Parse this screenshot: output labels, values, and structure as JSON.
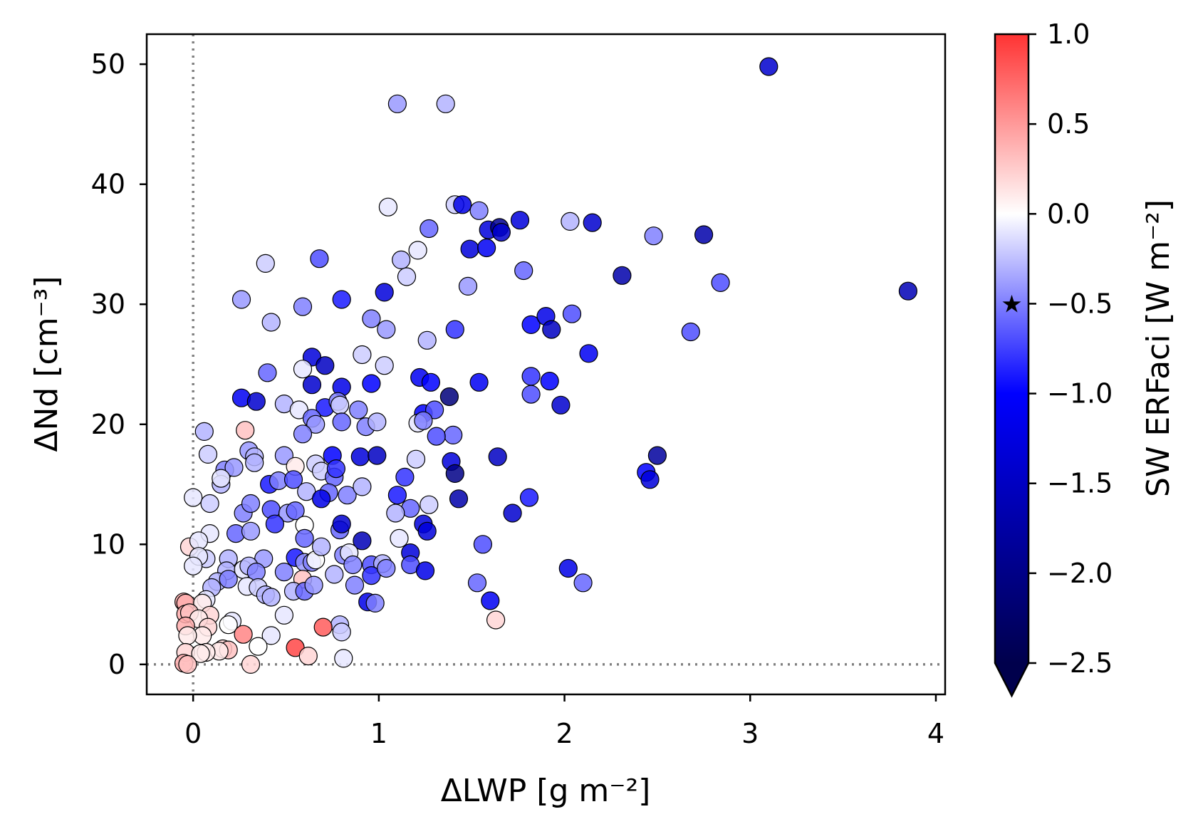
{
  "chart_data": {
    "type": "scatter",
    "xlabel": "ΔLWP [g m⁻²]",
    "ylabel": "ΔNd [cm⁻³]",
    "colorbar_label": "SW ERFaci [W m⁻²]",
    "xlim": [
      -0.25,
      4.05
    ],
    "ylim": [
      -2.5,
      52.5
    ],
    "x_ticks": [
      0,
      1,
      2,
      3,
      4
    ],
    "y_ticks": [
      0,
      10,
      20,
      30,
      40,
      50
    ],
    "colorbar_ticks": [
      1.0,
      0.5,
      0.0,
      -0.5,
      -1.0,
      -1.5,
      -2.0,
      -2.5
    ],
    "colorbar_tick_labels": [
      "1.0",
      "0.5",
      "0.0",
      "−0.5",
      "−1.0",
      "−1.5",
      "−2.0",
      "−2.5"
    ],
    "colorbar_range": [
      -2.5,
      1.0
    ],
    "colorbar_extend": "min",
    "colormap": "seismic",
    "colorbar_marker": {
      "symbol": "★",
      "value": -0.5
    },
    "reference_lines": {
      "x": 0,
      "y": 0,
      "style": "dotted",
      "color": "#808080"
    },
    "grid": false,
    "points": [
      [
        3.1,
        49.8,
        -1.4
      ],
      [
        1.1,
        46.7,
        -0.4
      ],
      [
        1.36,
        46.7,
        -0.3
      ],
      [
        1.05,
        38.1,
        -0.1
      ],
      [
        1.41,
        38.3,
        -0.2
      ],
      [
        1.45,
        38.3,
        -1.2
      ],
      [
        1.54,
        37.8,
        -0.5
      ],
      [
        1.59,
        36.2,
        -1.3
      ],
      [
        1.65,
        36.4,
        -1.9
      ],
      [
        1.66,
        36.0,
        -1.4
      ],
      [
        1.76,
        37.0,
        -1.3
      ],
      [
        2.03,
        36.9,
        -0.3
      ],
      [
        2.15,
        36.8,
        -1.4
      ],
      [
        1.27,
        36.3,
        -0.6
      ],
      [
        1.49,
        34.6,
        -1.3
      ],
      [
        1.58,
        34.7,
        -1.1
      ],
      [
        2.48,
        35.7,
        -0.5
      ],
      [
        2.75,
        35.8,
        -1.7
      ],
      [
        1.12,
        33.7,
        -0.3
      ],
      [
        1.21,
        34.5,
        -0.1
      ],
      [
        0.39,
        33.4,
        -0.2
      ],
      [
        0.68,
        33.8,
        -0.7
      ],
      [
        1.78,
        32.8,
        -0.6
      ],
      [
        1.15,
        32.3,
        -0.2
      ],
      [
        2.31,
        32.4,
        -1.7
      ],
      [
        2.84,
        31.8,
        -0.7
      ],
      [
        1.48,
        31.5,
        -0.4
      ],
      [
        1.03,
        31.0,
        -1.3
      ],
      [
        3.85,
        31.1,
        -1.6
      ],
      [
        0.26,
        30.4,
        -0.4
      ],
      [
        0.8,
        30.4,
        -0.9
      ],
      [
        0.59,
        29.8,
        -0.5
      ],
      [
        0.96,
        28.8,
        -0.5
      ],
      [
        0.42,
        28.5,
        -0.3
      ],
      [
        1.82,
        28.3,
        -1.0
      ],
      [
        1.9,
        29.0,
        -1.2
      ],
      [
        2.04,
        29.2,
        -0.7
      ],
      [
        1.93,
        27.9,
        -1.5
      ],
      [
        2.68,
        27.7,
        -0.7
      ],
      [
        1.04,
        27.9,
        -0.4
      ],
      [
        1.26,
        27.0,
        -0.3
      ],
      [
        1.41,
        27.9,
        -0.8
      ],
      [
        0.64,
        25.6,
        -1.3
      ],
      [
        0.71,
        24.9,
        -1.5
      ],
      [
        0.91,
        25.8,
        -0.2
      ],
      [
        1.03,
        24.9,
        -0.2
      ],
      [
        0.59,
        24.6,
        -0.1
      ],
      [
        0.4,
        24.3,
        -0.6
      ],
      [
        1.82,
        24.0,
        -0.8
      ],
      [
        2.13,
        25.9,
        -1.1
      ],
      [
        0.64,
        23.3,
        -1.4
      ],
      [
        0.8,
        23.1,
        -1.2
      ],
      [
        0.96,
        23.4,
        -1.0
      ],
      [
        1.22,
        23.9,
        -1.1
      ],
      [
        1.28,
        23.5,
        -1.0
      ],
      [
        1.54,
        23.5,
        -1.1
      ],
      [
        1.92,
        23.6,
        -1.0
      ],
      [
        0.26,
        22.2,
        -1.1
      ],
      [
        0.34,
        21.9,
        -1.4
      ],
      [
        0.49,
        21.7,
        -0.3
      ],
      [
        0.57,
        21.2,
        -0.1
      ],
      [
        0.71,
        21.4,
        -0.9
      ],
      [
        0.78,
        21.9,
        -0.5
      ],
      [
        0.79,
        21.6,
        -0.2
      ],
      [
        0.89,
        21.2,
        -0.5
      ],
      [
        1.24,
        20.9,
        -1.0
      ],
      [
        1.3,
        21.2,
        -0.7
      ],
      [
        1.38,
        22.3,
        -2.1
      ],
      [
        1.82,
        22.5,
        -0.7
      ],
      [
        1.98,
        21.6,
        -1.4
      ],
      [
        0.64,
        20.5,
        -0.6
      ],
      [
        0.66,
        20.0,
        -0.4
      ],
      [
        0.8,
        20.2,
        -0.6
      ],
      [
        0.93,
        19.8,
        -0.5
      ],
      [
        0.99,
        20.2,
        -0.3
      ],
      [
        1.21,
        20.1,
        -0.1
      ],
      [
        1.24,
        20.3,
        -0.5
      ],
      [
        1.4,
        19.1,
        -0.6
      ],
      [
        0.06,
        19.4,
        -0.3
      ],
      [
        0.28,
        19.5,
        0.3
      ],
      [
        0.59,
        19.2,
        -0.5
      ],
      [
        1.31,
        19.0,
        -0.7
      ],
      [
        0.08,
        17.5,
        -0.2
      ],
      [
        0.3,
        17.8,
        -0.4
      ],
      [
        0.33,
        17.3,
        -0.3
      ],
      [
        0.49,
        17.4,
        -0.4
      ],
      [
        0.75,
        17.4,
        -1.0
      ],
      [
        0.9,
        17.3,
        -1.3
      ],
      [
        0.99,
        17.4,
        -1.5
      ],
      [
        1.2,
        17.1,
        -0.2
      ],
      [
        1.39,
        16.9,
        -1.3
      ],
      [
        1.64,
        17.3,
        -1.5
      ],
      [
        2.5,
        17.4,
        -1.8
      ],
      [
        0.17,
        16.2,
        -0.5
      ],
      [
        0.22,
        16.4,
        -0.4
      ],
      [
        0.33,
        16.8,
        -0.3
      ],
      [
        0.41,
        15.0,
        -0.9
      ],
      [
        0.55,
        16.5,
        0.1
      ],
      [
        0.66,
        16.7,
        -0.2
      ],
      [
        0.69,
        16.1,
        -0.2
      ],
      [
        0.76,
        15.6,
        -0.6
      ],
      [
        0.77,
        16.3,
        -0.8
      ],
      [
        1.41,
        15.9,
        -2.0
      ],
      [
        2.44,
        16.0,
        -1.0
      ],
      [
        0.15,
        15.0,
        -0.3
      ],
      [
        0.15,
        15.5,
        -0.1
      ],
      [
        0.46,
        15.3,
        -0.5
      ],
      [
        0.54,
        15.4,
        -0.7
      ],
      [
        0.61,
        14.4,
        -0.3
      ],
      [
        0.73,
        14.3,
        -0.6
      ],
      [
        0.83,
        14.1,
        -0.5
      ],
      [
        0.91,
        14.8,
        -0.3
      ],
      [
        1.1,
        14.1,
        -0.9
      ],
      [
        1.14,
        15.6,
        -0.8
      ],
      [
        1.17,
        13.0,
        -0.6
      ],
      [
        1.27,
        13.3,
        -0.2
      ],
      [
        1.43,
        13.8,
        -1.7
      ],
      [
        1.81,
        13.9,
        -0.9
      ],
      [
        2.46,
        15.4,
        -1.3
      ],
      [
        0,
        13.9,
        -0.1
      ],
      [
        0.09,
        13.4,
        -0.2
      ],
      [
        0.27,
        12.6,
        -0.5
      ],
      [
        0.31,
        13.4,
        -0.5
      ],
      [
        0.42,
        12.9,
        -0.7
      ],
      [
        0.51,
        12.6,
        -0.4
      ],
      [
        0.55,
        12.8,
        -0.6
      ],
      [
        0.69,
        13.8,
        -1.2
      ],
      [
        1.09,
        12.6,
        -0.3
      ],
      [
        1.24,
        11.7,
        -1.3
      ],
      [
        1.26,
        11.1,
        -1.3
      ],
      [
        1.72,
        12.6,
        -1.4
      ],
      [
        0.09,
        10.9,
        -0.1
      ],
      [
        0.23,
        10.9,
        -0.6
      ],
      [
        0.31,
        11.1,
        -0.4
      ],
      [
        0.44,
        11.7,
        -0.8
      ],
      [
        0.6,
        11.6,
        0.0
      ],
      [
        0.6,
        10.5,
        -0.6
      ],
      [
        0.79,
        11.2,
        -0.6
      ],
      [
        0.8,
        11.7,
        -1.4
      ],
      [
        1.11,
        10.5,
        -0.1
      ],
      [
        0.91,
        10.3,
        -1.6
      ],
      [
        1.56,
        10.0,
        -0.7
      ],
      [
        -0.02,
        9.8,
        0.2
      ],
      [
        0.03,
        10.3,
        -0.1
      ],
      [
        0.07,
        8.8,
        -0.2
      ],
      [
        0.03,
        9.0,
        -0.1
      ],
      [
        0.19,
        8.8,
        -0.3
      ],
      [
        0.38,
        8.8,
        -0.4
      ],
      [
        0.55,
        8.9,
        -0.9
      ],
      [
        0.6,
        8.5,
        -0.4
      ],
      [
        0.64,
        8.5,
        -0.5
      ],
      [
        0.66,
        8.7,
        0.0
      ],
      [
        0.69,
        9.8,
        -0.3
      ],
      [
        0.81,
        9.1,
        -0.5
      ],
      [
        0.84,
        9.3,
        -0.1
      ],
      [
        0.86,
        8.3,
        -0.5
      ],
      [
        0.96,
        8.3,
        -0.7
      ],
      [
        1.02,
        8.4,
        -0.3
      ],
      [
        1.17,
        9.3,
        -1.3
      ],
      [
        1.17,
        8.3,
        -0.7
      ],
      [
        1.25,
        7.8,
        -1.2
      ],
      [
        0,
        8.2,
        -0.1
      ],
      [
        0.18,
        7.8,
        -0.3
      ],
      [
        0.27,
        7.9,
        -0.1
      ],
      [
        0.3,
        8.2,
        -0.3
      ],
      [
        0.34,
        7.7,
        -0.5
      ],
      [
        0.49,
        7.7,
        -0.5
      ],
      [
        0.59,
        7.1,
        0.3
      ],
      [
        0.76,
        7.5,
        -0.3
      ],
      [
        0.96,
        7.4,
        -0.8
      ],
      [
        1.04,
        8.0,
        -0.5
      ],
      [
        2.02,
        8.0,
        -1.2
      ],
      [
        0.13,
        6.9,
        -0.3
      ],
      [
        0.19,
        7.1,
        -0.5
      ],
      [
        0.29,
        6.5,
        -0.1
      ],
      [
        0.35,
        6.4,
        -0.2
      ],
      [
        0.54,
        6.1,
        -0.3
      ],
      [
        0.6,
        6.1,
        -0.6
      ],
      [
        0.65,
        6.6,
        -0.4
      ],
      [
        0.87,
        6.6,
        -0.5
      ],
      [
        1.53,
        6.8,
        -0.6
      ],
      [
        2.1,
        6.8,
        -0.6
      ],
      [
        0.1,
        6.4,
        -0.3
      ],
      [
        0.07,
        5.4,
        -0.1
      ],
      [
        0.39,
        5.8,
        -0.3
      ],
      [
        0.42,
        5.6,
        -0.3
      ],
      [
        0.94,
        5.2,
        -1.2
      ],
      [
        0.98,
        5.1,
        -0.5
      ],
      [
        1.6,
        5.3,
        -1.1
      ],
      [
        -0.05,
        5.2,
        0.4
      ],
      [
        -0.04,
        5.1,
        0.4
      ],
      [
        0.05,
        5.1,
        0.1
      ],
      [
        0.49,
        4.1,
        -0.1
      ],
      [
        0.09,
        4.1,
        0.2
      ],
      [
        -0.04,
        4.2,
        0.4
      ],
      [
        -0.02,
        4.3,
        0.3
      ],
      [
        0.03,
        3.8,
        0.1
      ],
      [
        -0.04,
        3.2,
        0.4
      ],
      [
        0.08,
        3.1,
        0.2
      ],
      [
        0.21,
        3.6,
        -0.1
      ],
      [
        0.19,
        3.3,
        0.0
      ],
      [
        0.79,
        3.3,
        -0.3
      ],
      [
        0.8,
        2.7,
        -0.2
      ],
      [
        1.63,
        3.7,
        0.2
      ],
      [
        0.7,
        3.1,
        0.8
      ],
      [
        0.27,
        2.5,
        0.6
      ],
      [
        0.42,
        2.4,
        -0.1
      ],
      [
        0.05,
        2.4,
        0.1
      ],
      [
        -0.03,
        2.4,
        0.1
      ],
      [
        0.35,
        1.5,
        0.0
      ],
      [
        0.55,
        1.4,
        0.9
      ],
      [
        0.16,
        1.3,
        0.2
      ],
      [
        0.19,
        1.2,
        0.3
      ],
      [
        0.14,
        1.1,
        0.1
      ],
      [
        0.07,
        1.0,
        0.1
      ],
      [
        -0.04,
        1.0,
        0.2
      ],
      [
        0.04,
        0.9,
        0.1
      ],
      [
        0.62,
        0.7,
        0.2
      ],
      [
        0.81,
        0.5,
        -0.1
      ],
      [
        -0.05,
        0.1,
        0.4
      ],
      [
        -0.03,
        0.0,
        0.3
      ],
      [
        0.31,
        0.0,
        0.2
      ]
    ]
  }
}
